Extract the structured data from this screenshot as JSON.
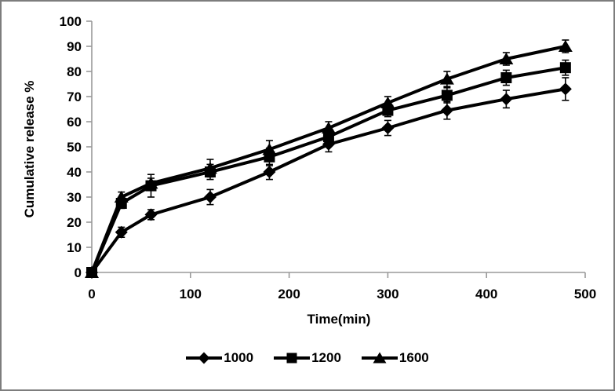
{
  "figure": {
    "background": "#ffffff",
    "border_color": "#7d7d7d"
  },
  "chart_data": {
    "type": "line",
    "title": "",
    "xlabel": "Time(min)",
    "ylabel": "Cumulative release %",
    "xlim": [
      0,
      500
    ],
    "ylim": [
      0,
      100
    ],
    "x_ticks": [
      0,
      100,
      200,
      300,
      400,
      500
    ],
    "y_ticks": [
      0,
      10,
      20,
      30,
      40,
      50,
      60,
      70,
      80,
      90,
      100
    ],
    "grid": false,
    "legend_position": "bottom",
    "axis_color": "#9a9a9a",
    "series_color": "#000000",
    "x": [
      0,
      30,
      60,
      120,
      180,
      240,
      300,
      360,
      420,
      480
    ],
    "series": [
      {
        "name": "1000",
        "marker": "diamond",
        "values": [
          0,
          16,
          23,
          30,
          40,
          51,
          57.5,
          64.5,
          69,
          73
        ],
        "errors": [
          0,
          2,
          2,
          3,
          3,
          3,
          3,
          3.5,
          3.5,
          4.5
        ]
      },
      {
        "name": "1200",
        "marker": "square",
        "values": [
          0,
          27.5,
          34.5,
          40,
          46,
          54,
          64.5,
          70.5,
          77.5,
          81.5
        ],
        "errors": [
          0,
          2,
          4.5,
          3,
          3.5,
          3,
          2.5,
          3,
          3,
          3
        ]
      },
      {
        "name": "1600",
        "marker": "triangle",
        "values": [
          0,
          30,
          35.5,
          41.5,
          49,
          57.5,
          67.5,
          77,
          85,
          90
        ],
        "errors": [
          0,
          2,
          2,
          3.5,
          3.5,
          2.5,
          2.5,
          3,
          2.5,
          2.5
        ]
      }
    ]
  }
}
